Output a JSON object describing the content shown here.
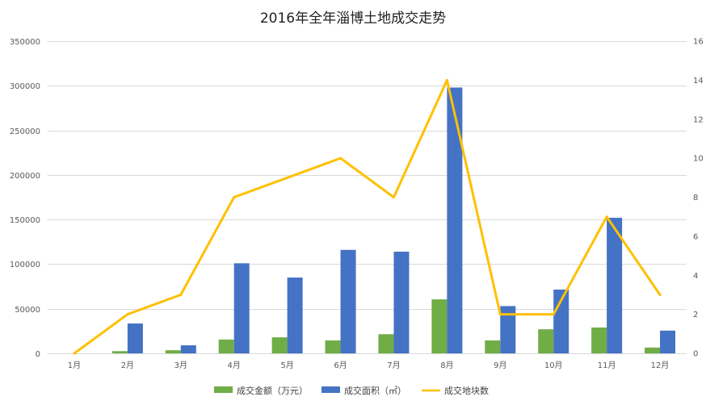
{
  "chart_data": {
    "type": "bar",
    "title": "2016年全年淄博土地成交走势",
    "categories": [
      "1月",
      "2月",
      "3月",
      "4月",
      "5月",
      "6月",
      "7月",
      "8月",
      "9月",
      "10月",
      "11月",
      "12月"
    ],
    "series": [
      {
        "name": "成交金额（万元）",
        "type": "bar",
        "axis": "left",
        "color": "#70ad47",
        "values": [
          0,
          2500,
          3500,
          15500,
          18000,
          14500,
          21500,
          60500,
          14500,
          27000,
          29000,
          6500
        ]
      },
      {
        "name": "成交面积（㎡）",
        "type": "bar",
        "axis": "left",
        "color": "#4472c4",
        "values": [
          0,
          33500,
          9000,
          101000,
          85000,
          116000,
          114000,
          298000,
          53000,
          71500,
          152000,
          25500
        ]
      },
      {
        "name": "成交地块数",
        "type": "line",
        "axis": "right",
        "color": "#ffc000",
        "values": [
          0,
          2,
          3,
          8,
          9,
          10,
          8,
          14,
          2,
          2,
          7,
          3
        ]
      }
    ],
    "y_left": {
      "min": 0,
      "max": 350000,
      "step": 50000,
      "ticks": [
        "0",
        "50000",
        "100000",
        "150000",
        "200000",
        "250000",
        "300000",
        "350000"
      ]
    },
    "y_right": {
      "min": 0,
      "max": 16,
      "step": 2,
      "ticks": [
        "0",
        "2",
        "4",
        "6",
        "8",
        "10",
        "12",
        "14",
        "16"
      ]
    },
    "grid": true,
    "legend": "bottom"
  }
}
